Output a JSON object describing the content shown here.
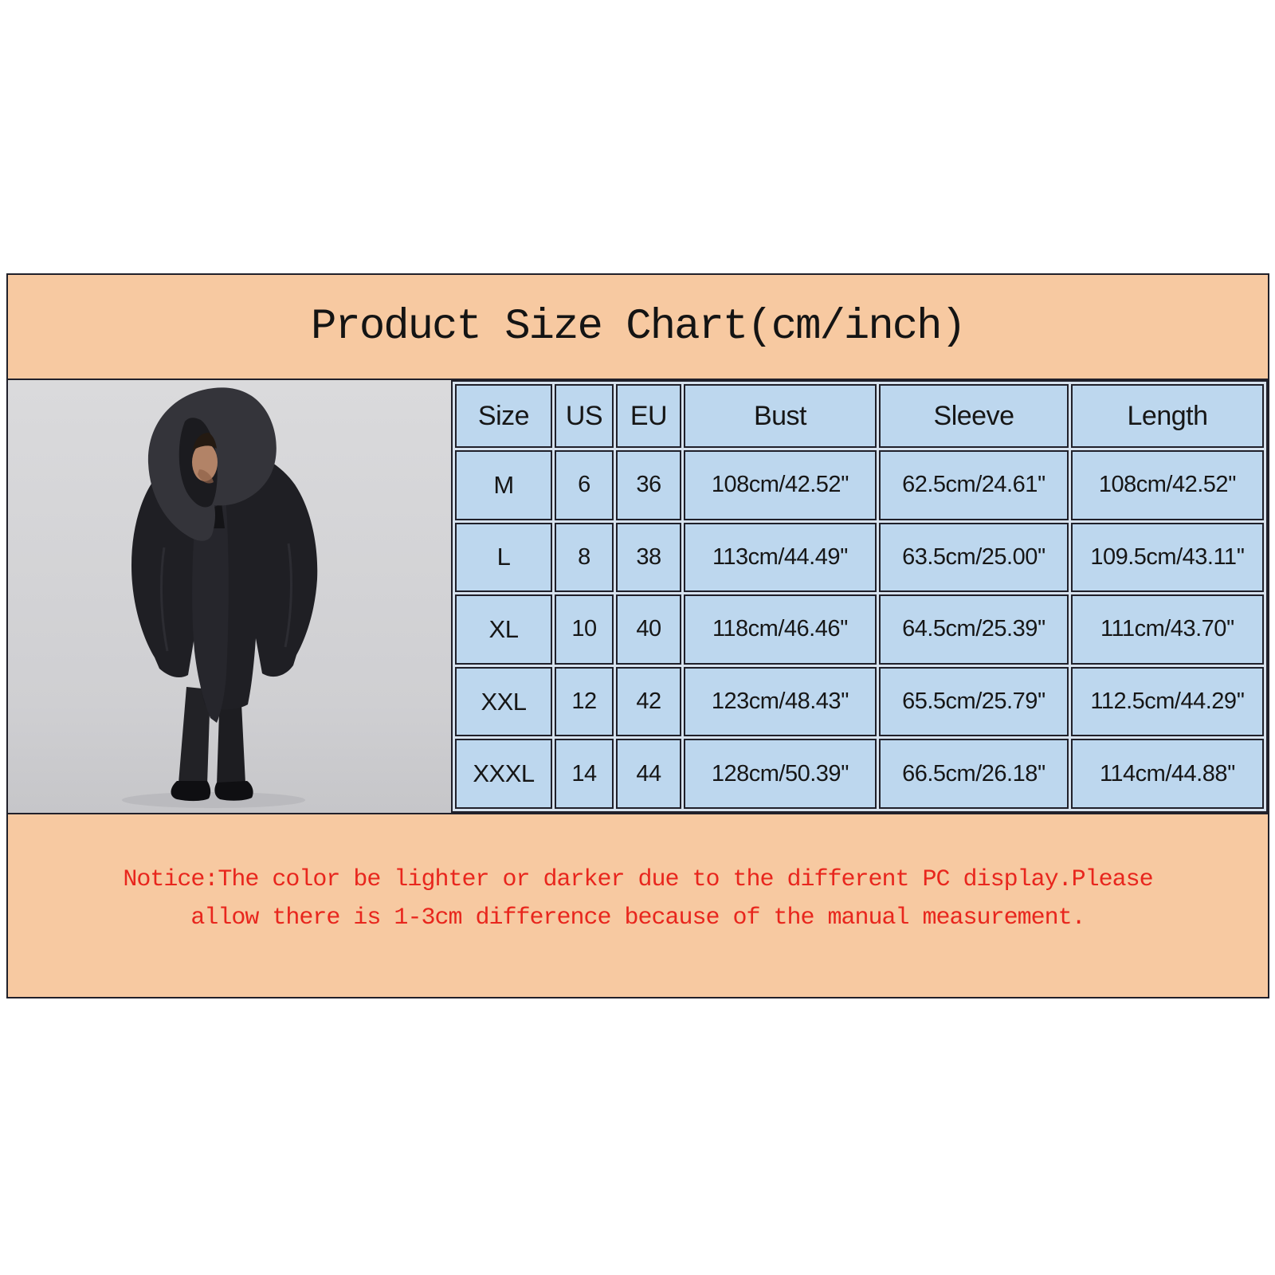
{
  "panel": {
    "title": "Product Size Chart(cm/inch)"
  },
  "size_table": {
    "columns": [
      "Size",
      "US",
      "EU",
      "Bust",
      "Sleeve",
      "Length"
    ],
    "rows": [
      [
        "M",
        "6",
        "36",
        "108cm/42.52''",
        "62.5cm/24.61''",
        "108cm/42.52''"
      ],
      [
        "L",
        "8",
        "38",
        "113cm/44.49''",
        "63.5cm/25.00''",
        "109.5cm/43.11''"
      ],
      [
        "XL",
        "10",
        "40",
        "118cm/46.46''",
        "64.5cm/25.39''",
        "111cm/43.70''"
      ],
      [
        "XXL",
        "12",
        "42",
        "123cm/48.43''",
        "65.5cm/25.79''",
        "112.5cm/44.29''"
      ],
      [
        "XXXL",
        "14",
        "44",
        "128cm/50.39''",
        "66.5cm/26.18''",
        "114cm/44.88''"
      ]
    ]
  },
  "notice": {
    "line1": "Notice:The color be lighter or darker due to the different PC display.Please",
    "line2": "allow there is 1-3cm difference because of the manual measurement."
  },
  "photo": {
    "description": "Model wearing a long black hooded open-front cloak cardigan with hands in pockets"
  },
  "colors": {
    "header_bg": "#F7C9A1",
    "cell_bg": "#BDD7EE",
    "notice_text": "#E8261D",
    "grid_border": "#20202A"
  }
}
